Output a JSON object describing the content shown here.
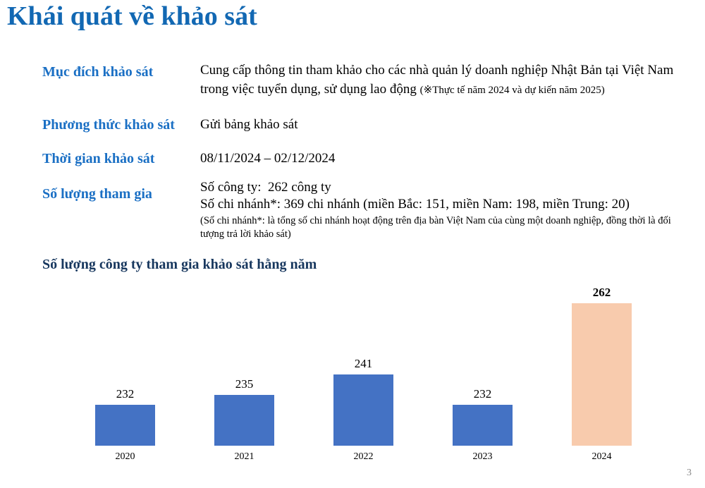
{
  "page": {
    "title": "Khái quát về khảo sát",
    "page_number": "3"
  },
  "survey_info": {
    "rows": [
      {
        "label": "Mục đích khảo sát",
        "content": "Cung cấp thông tin tham khảo cho các nhà quản lý doanh nghiệp Nhật Bản tại Việt Nam trong việc tuyển dụng, sử dụng lao động",
        "content_note": "(※Thực tế năm 2024 và dự kiến năm 2025)"
      },
      {
        "label": "Phương thức khảo sát",
        "content": "Gửi bảng khảo sát"
      },
      {
        "label": "Thời gian khảo sát",
        "content": "08/11/2024 – 02/12/2024"
      },
      {
        "label": "Số lượng tham gia",
        "line1": "Số công ty:  262 công ty",
        "line2": "Số chi nhánh*: 369 chi nhánh (miền Bắc: 151, miền Nam: 198, miền Trung: 20)",
        "note": "(Số chi nhánh*: là tổng số chi nhánh hoạt động trên địa bàn Việt Nam của cùng một doanh nghiệp, đồng thời là đối tượng trả lời khảo sát)"
      }
    ]
  },
  "chart_data": {
    "type": "bar",
    "title": "Số lượng công ty tham gia khảo sát hằng năm",
    "categories": [
      "2020",
      "2021",
      "2022",
      "2023",
      "2024"
    ],
    "values": [
      232,
      235,
      241,
      232,
      262
    ],
    "highlight_index": 4,
    "xlabel": "",
    "ylabel": "",
    "ylim": [
      220,
      270
    ],
    "grid": false,
    "legend": false,
    "data_labels": true,
    "colors": {
      "default_bar": "#4472C4",
      "highlight_bar": "#F8CBAD"
    }
  },
  "colors": {
    "title_blue": "#1268B3",
    "label_blue": "#1A6FC4",
    "chart_title_navy": "#17375E",
    "page_number_gray": "#8a8a8a"
  }
}
